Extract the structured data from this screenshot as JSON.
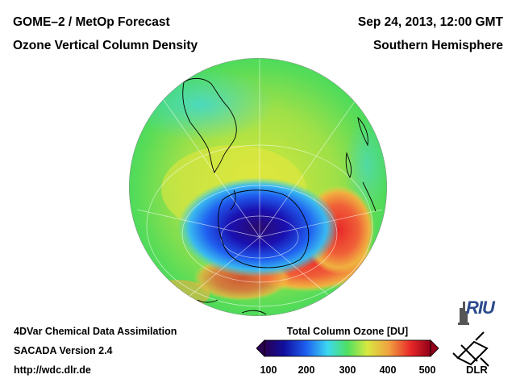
{
  "header": {
    "title_left": "GOME–2 / MetOp Forecast",
    "subtitle_left": "Ozone Vertical Column Density",
    "date_right": "Sep 24, 2013, 12:00 GMT",
    "region_right": "Southern Hemisphere"
  },
  "footer": {
    "line1": "4DVar Chemical Data Assimilation",
    "line2": "SACADA Version 2.4",
    "line3": "http://wdc.dlr.de"
  },
  "colorbar": {
    "title": "Total Column Ozone [DU]",
    "ticks": [
      "100",
      "200",
      "300",
      "400",
      "500"
    ],
    "stops": [
      "#2a0050",
      "#1010a0",
      "#1e5ff0",
      "#3cd8f0",
      "#50e060",
      "#d8e840",
      "#f0a040",
      "#e82828",
      "#900018"
    ]
  },
  "logos": {
    "riu": "RIU",
    "dlr": "DLR"
  },
  "map": {
    "hole_color": "#2a0a6e",
    "ring_color": "#e83020"
  }
}
